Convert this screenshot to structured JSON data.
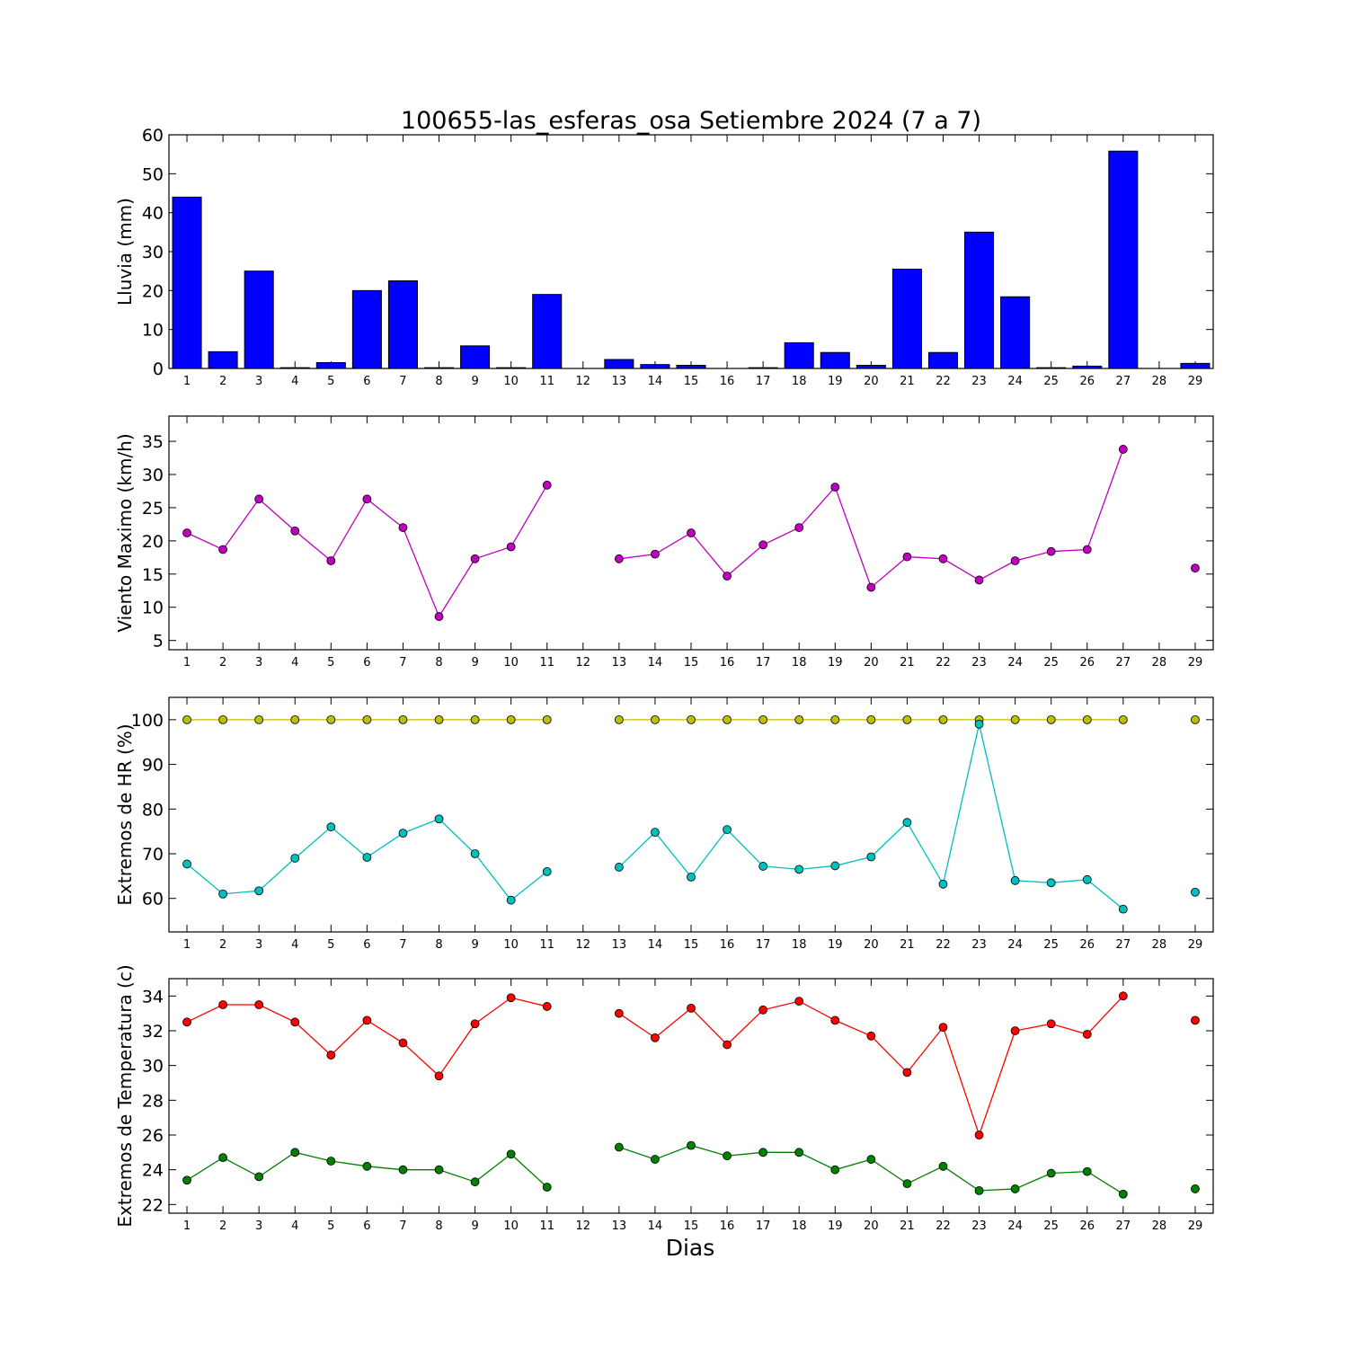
{
  "title": "100655-las_esferas_osa Setiembre 2024  (7 a 7)",
  "xlabel": "Dias",
  "chart_data": [
    {
      "type": "bar",
      "ylabel": "Lluvia (mm)",
      "ylim": [
        0,
        60
      ],
      "yticks": [
        0,
        10,
        20,
        30,
        40,
        50,
        60
      ],
      "x": [
        1,
        2,
        3,
        4,
        5,
        6,
        7,
        8,
        9,
        10,
        11,
        12,
        13,
        14,
        15,
        16,
        17,
        18,
        19,
        20,
        21,
        22,
        23,
        24,
        25,
        26,
        27,
        28,
        29
      ],
      "xlim": [
        0.5,
        29.5
      ],
      "series": [
        {
          "color": "#0000ff",
          "values": [
            44.0,
            4.3,
            25.0,
            0.2,
            1.5,
            20.0,
            22.5,
            0.2,
            5.8,
            0.2,
            19.0,
            null,
            2.3,
            1.0,
            0.8,
            null,
            0.2,
            6.6,
            4.1,
            0.8,
            25.5,
            4.1,
            35.0,
            18.4,
            0.2,
            0.6,
            55.8,
            null,
            1.3
          ]
        }
      ]
    },
    {
      "type": "line",
      "ylabel": "Viento Maximo (km/h)",
      "ylim": [
        3.6,
        38.8
      ],
      "yticks": [
        5,
        10,
        15,
        20,
        25,
        30,
        35
      ],
      "x": [
        1,
        2,
        3,
        4,
        5,
        6,
        7,
        8,
        9,
        10,
        11,
        12,
        13,
        14,
        15,
        16,
        17,
        18,
        19,
        20,
        21,
        22,
        23,
        24,
        25,
        26,
        27,
        28,
        29
      ],
      "xlim": [
        0.5,
        29.5
      ],
      "series": [
        {
          "color": "#bf00bf",
          "values": [
            21.2,
            18.7,
            26.3,
            21.5,
            17.0,
            26.3,
            22.0,
            8.6,
            17.3,
            19.1,
            28.4,
            null,
            17.3,
            18.0,
            21.2,
            14.7,
            19.4,
            22.0,
            28.1,
            13.0,
            17.6,
            17.3,
            14.1,
            17.0,
            18.4,
            18.7,
            33.8,
            null,
            15.9
          ]
        }
      ]
    },
    {
      "type": "line",
      "ylabel": "Extremos de HR (%)",
      "ylim": [
        52.5,
        105
      ],
      "yticks": [
        60,
        70,
        80,
        90,
        100
      ],
      "x": [
        1,
        2,
        3,
        4,
        5,
        6,
        7,
        8,
        9,
        10,
        11,
        12,
        13,
        14,
        15,
        16,
        17,
        18,
        19,
        20,
        21,
        22,
        23,
        24,
        25,
        26,
        27,
        28,
        29
      ],
      "xlim": [
        0.5,
        29.5
      ],
      "series": [
        {
          "color": "#bfbf00",
          "values": [
            100,
            100,
            100,
            100,
            100,
            100,
            100,
            100,
            100,
            100,
            100,
            null,
            100,
            100,
            100,
            100,
            100,
            100,
            100,
            100,
            100,
            100,
            100,
            100,
            100,
            100,
            100,
            null,
            100
          ]
        },
        {
          "color": "#00bfbf",
          "values": [
            67.7,
            61.0,
            61.7,
            69.0,
            76.0,
            69.2,
            74.6,
            77.8,
            70.0,
            59.6,
            66.0,
            null,
            67.0,
            74.8,
            64.8,
            75.4,
            67.2,
            66.5,
            67.3,
            69.3,
            77.0,
            63.2,
            99.0,
            64.0,
            63.5,
            64.2,
            57.6,
            null,
            61.4
          ]
        }
      ]
    },
    {
      "type": "line",
      "ylabel": "Extremos de Temperatura (c)",
      "ylim": [
        21.5,
        35.0
      ],
      "yticks": [
        22,
        24,
        26,
        28,
        30,
        32,
        34
      ],
      "x": [
        1,
        2,
        3,
        4,
        5,
        6,
        7,
        8,
        9,
        10,
        11,
        12,
        13,
        14,
        15,
        16,
        17,
        18,
        19,
        20,
        21,
        22,
        23,
        24,
        25,
        26,
        27,
        28,
        29
      ],
      "xlim": [
        0.5,
        29.5
      ],
      "series": [
        {
          "color": "#ff0000",
          "values": [
            32.5,
            33.5,
            33.5,
            32.5,
            30.6,
            32.6,
            31.3,
            29.4,
            32.4,
            33.9,
            33.4,
            null,
            33.0,
            31.6,
            33.3,
            31.2,
            33.2,
            33.7,
            32.6,
            31.7,
            29.6,
            32.2,
            26.0,
            32.0,
            32.4,
            31.8,
            34.0,
            null,
            32.6
          ]
        },
        {
          "color": "#008000",
          "values": [
            23.4,
            24.7,
            23.6,
            25.0,
            24.5,
            24.2,
            24.0,
            24.0,
            23.3,
            24.9,
            23.0,
            null,
            25.3,
            24.6,
            25.4,
            24.8,
            25.0,
            25.0,
            24.0,
            24.6,
            23.2,
            24.2,
            22.8,
            22.9,
            23.8,
            23.9,
            22.6,
            null,
            22.9
          ]
        }
      ]
    }
  ]
}
